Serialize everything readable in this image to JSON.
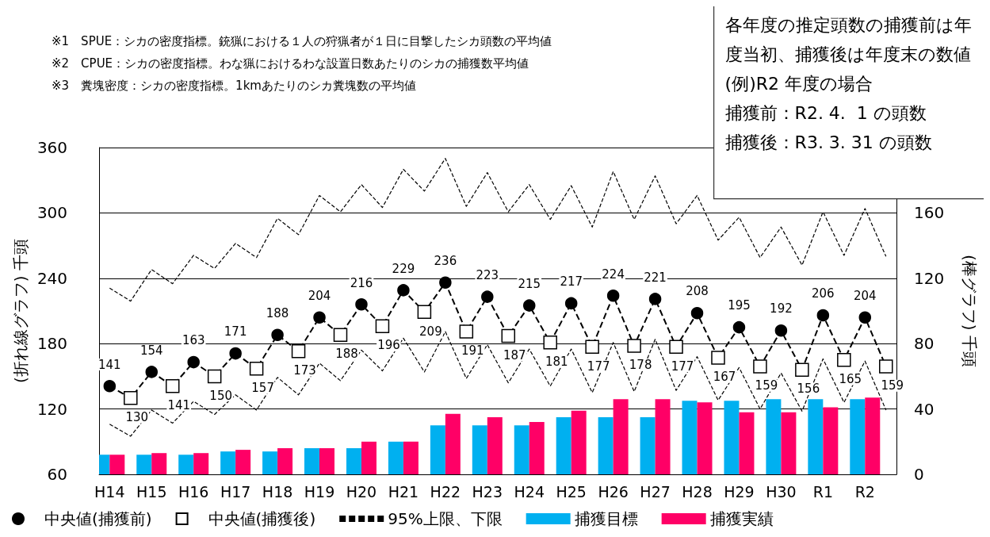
{
  "chart_data": {
    "type": "bar",
    "ylabel": "(折れ線グラフ) 千頭",
    "y2label": "(棒グラフ) 千頭",
    "annotations": [
      "※1　SPUE：シカの密度指標。銃猟における１人の狩猟者が１日に目撃したシカ頭数の平均値",
      "※2　CPUE：シカの密度指標。わな猟におけるわな設置日数あたりのシカの捕獲数平均値",
      "※3　糞塊密度：シカの密度指標。1kmあたりのシカ糞塊数の平均値",
      "各年度の推定頭数の捕獲前は年度当初、捕獲後は年度末の数値",
      "(例)R2 年度の場合",
      "捕獲前：R2. 4.  1 の頭数",
      "捕獲後：R3. 3. 31 の頭数"
    ],
    "categories": [
      "H14",
      null,
      "H15",
      null,
      "H16",
      null,
      "H17",
      null,
      "H18",
      null,
      "H19",
      null,
      "H20",
      null,
      "H21",
      null,
      "H22",
      null,
      "H23",
      null,
      "H24",
      null,
      "H25",
      null,
      "H26",
      null,
      "H27",
      null,
      "H28",
      null,
      "H29",
      null,
      "H30",
      null,
      "R1",
      null,
      "R2",
      null
    ],
    "ylim": [
      60,
      360
    ],
    "yticks": [
      60,
      120,
      180,
      240,
      300,
      360
    ],
    "y2lim": [
      0,
      200
    ],
    "y2ticks": [
      0,
      40,
      80,
      120,
      160
    ],
    "grid": "y",
    "legend": "bottom",
    "series": [
      {
        "type": "line",
        "color": "#000000",
        "marker": "none",
        "line_style": "dashed",
        "values": [
          141,
          130,
          154,
          141,
          163,
          150,
          171,
          157,
          188,
          173,
          204,
          188,
          216,
          196,
          229,
          209,
          236,
          191,
          223,
          187,
          215,
          181,
          217,
          177,
          224,
          178,
          221,
          177,
          208,
          167,
          195,
          159,
          192,
          156,
          206,
          165,
          204,
          159
        ]
      },
      {
        "name": "中央値(捕獲前)",
        "type": "scatter",
        "color": "#000000",
        "marker": "circle",
        "data_labels": true,
        "values": [
          141,
          null,
          154,
          null,
          163,
          null,
          171,
          null,
          188,
          null,
          204,
          null,
          216,
          null,
          229,
          null,
          236,
          null,
          223,
          null,
          215,
          null,
          217,
          null,
          224,
          null,
          221,
          null,
          208,
          null,
          195,
          null,
          192,
          null,
          206,
          null,
          204,
          null
        ]
      },
      {
        "name": "中央値(捕獲後)",
        "type": "scatter",
        "color": "#000000",
        "marker": "square",
        "data_labels": true,
        "values": [
          null,
          130,
          null,
          141,
          null,
          150,
          null,
          157,
          null,
          173,
          null,
          188,
          null,
          196,
          null,
          209,
          null,
          191,
          null,
          187,
          null,
          181,
          null,
          177,
          null,
          178,
          null,
          177,
          null,
          167,
          null,
          159,
          null,
          156,
          null,
          165,
          null,
          159
        ]
      },
      {
        "name": "95%上限、下限",
        "type": "line",
        "color": "#000000",
        "marker": "none",
        "line_style": "dashed",
        "values": [
          231,
          219,
          248,
          235,
          261,
          249,
          272,
          259,
          295,
          280,
          316,
          301,
          326,
          305,
          340,
          320,
          350,
          306,
          337,
          301,
          326,
          294,
          325,
          287,
          338,
          294,
          334,
          290,
          316,
          275,
          296,
          259,
          287,
          252,
          301,
          261,
          304,
          260
        ]
      },
      {
        "type": "line",
        "color": "#000000",
        "marker": "none",
        "line_style": "dashed",
        "values": [
          106,
          95,
          119,
          107,
          127,
          115,
          133,
          119,
          149,
          133,
          162,
          146,
          174,
          155,
          185,
          154,
          191,
          148,
          179,
          144,
          175,
          141,
          175,
          135,
          181,
          136,
          184,
          137,
          168,
          128,
          158,
          120,
          153,
          118,
          166,
          126,
          164,
          119
        ]
      },
      {
        "name": "捕獲目標",
        "axis": "y2",
        "color": "#00b0f0",
        "values": [
          12,
          null,
          12,
          null,
          12,
          null,
          14,
          null,
          14,
          null,
          16,
          null,
          16,
          null,
          20,
          null,
          30,
          null,
          30,
          null,
          30,
          null,
          35,
          null,
          35,
          null,
          35,
          null,
          45,
          null,
          45,
          null,
          46,
          null,
          46,
          null,
          46,
          null
        ]
      },
      {
        "name": "捕獲実績",
        "axis": "y2",
        "color": "#ff0066",
        "values": [
          12,
          null,
          13,
          null,
          13,
          null,
          15,
          null,
          16,
          null,
          16,
          null,
          20,
          null,
          20,
          null,
          37,
          null,
          35,
          null,
          32,
          null,
          39,
          null,
          46,
          null,
          46,
          null,
          44,
          null,
          38,
          null,
          38,
          null,
          41,
          null,
          47,
          null
        ]
      }
    ]
  }
}
